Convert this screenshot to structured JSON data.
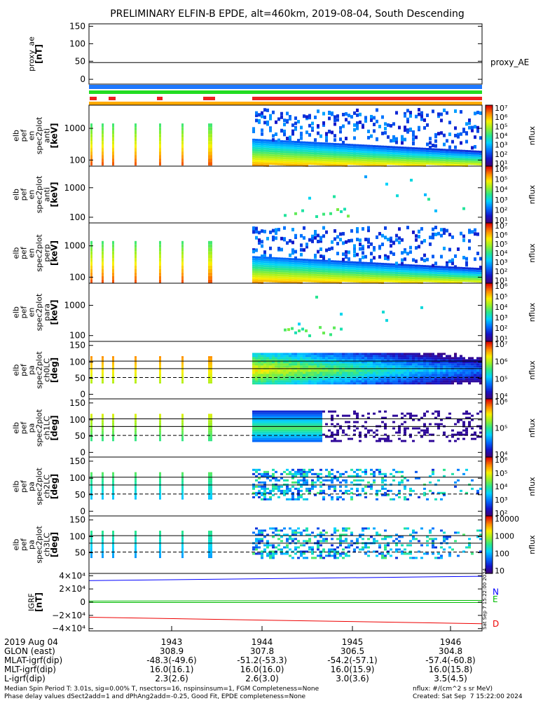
{
  "title": "PRELIMINARY ELFIN-B EPDE, alt=460km, 2019-08-04, South Descending",
  "colors": {
    "blue_bar": "#1e78ff",
    "green_bar": "#22dd22",
    "red_bar": "#ee2222",
    "orange_bar": "#ffaa00",
    "n_line": "#0000ff",
    "e_line": "#00bb00",
    "d_line": "#ee0000"
  },
  "chart_data": {
    "type": "heatmap",
    "x_ticks": [
      "1943",
      "1944",
      "1945",
      "1946"
    ],
    "panels": [
      {
        "ylabel": [
          "proxy_ae",
          "[nT]"
        ],
        "yticks": [
          "150",
          "100",
          "50",
          "0"
        ],
        "type": "line",
        "values": [
          49,
          49,
          49
        ],
        "legend": "proxy_AE"
      },
      {
        "ylabel": [
          "elb",
          "pef",
          "en",
          "spec2plot",
          "anti",
          "[keV]"
        ],
        "yticks": [
          "1000",
          "100"
        ],
        "type": "spectrogram",
        "cb_ticks": [
          "10⁷",
          "10⁶",
          "10⁵",
          "10⁴",
          "10³",
          "10²",
          "10¹"
        ],
        "cb_label": "nflux"
      },
      {
        "ylabel": [
          "elb",
          "pef",
          "en",
          "spec2plot",
          "anti",
          "[keV]"
        ],
        "yticks": [
          "1000",
          "100"
        ],
        "type": "spectrogram",
        "cb_ticks": [
          "10⁶",
          "10⁵",
          "10⁴",
          "10³",
          "10²",
          "10¹"
        ],
        "cb_label": "nflux"
      },
      {
        "ylabel": [
          "elb",
          "pef",
          "en",
          "spec2plot",
          "perp",
          "[keV]"
        ],
        "yticks": [
          "1000",
          "100"
        ],
        "type": "spectrogram",
        "cb_ticks": [
          "10⁷",
          "10⁶",
          "10⁵",
          "10⁴",
          "10³",
          "10²",
          "10¹"
        ],
        "cb_label": "nflux"
      },
      {
        "ylabel": [
          "elb",
          "pef",
          "en",
          "spec2plot",
          "para",
          "[keV]"
        ],
        "yticks": [
          "1000",
          "100"
        ],
        "type": "spectrogram",
        "cb_ticks": [
          "10⁶",
          "10⁵",
          "10⁴",
          "10³",
          "10²",
          "10¹"
        ],
        "cb_label": "nflux"
      },
      {
        "ylabel": [
          "elb",
          "pef",
          "pa",
          "spec2plot",
          "ch0LC",
          "[deg]"
        ],
        "yticks": [
          "150",
          "100",
          "50",
          "0"
        ],
        "type": "pitch",
        "cb_ticks": [
          "10⁷",
          "10⁶",
          "10⁵",
          "10⁴"
        ],
        "cb_label": "nflux"
      },
      {
        "ylabel": [
          "elb",
          "pef",
          "pa",
          "spec2plot",
          "ch1LC",
          "[deg]"
        ],
        "yticks": [
          "150",
          "100",
          "50",
          "0"
        ],
        "type": "pitch",
        "cb_ticks": [
          "10⁶",
          "10⁵",
          "10⁴"
        ],
        "cb_label": "nflux"
      },
      {
        "ylabel": [
          "elb",
          "pef",
          "pa",
          "spec2plot",
          "ch2LC",
          "[deg]"
        ],
        "yticks": [
          "150",
          "100",
          "50",
          "0"
        ],
        "type": "pitch",
        "cb_ticks": [
          "10⁶",
          "10⁵",
          "10⁴",
          "10³",
          "10²"
        ],
        "cb_label": "nflux"
      },
      {
        "ylabel": [
          "elb",
          "pef",
          "pa",
          "spec2plot",
          "ch3LC",
          "[deg]"
        ],
        "yticks": [
          "150",
          "100",
          "50"
        ],
        "type": "pitch",
        "cb_ticks": [
          "10000",
          "1000",
          "100",
          "10"
        ],
        "cb_label": "nflux"
      },
      {
        "ylabel": [
          "IGRF",
          "[nT]"
        ],
        "yticks": [
          "4×10⁴",
          "2×10⁴",
          "0",
          "−2×10⁴",
          "−4×10⁴"
        ],
        "type": "line",
        "ylim": [
          -40000,
          40000
        ],
        "series": [
          {
            "name": "N",
            "values": [
              30000,
              36000
            ]
          },
          {
            "name": "E",
            "values": [
              1500,
              2500
            ]
          },
          {
            "name": "D",
            "values": [
              -21000,
              -30000
            ]
          }
        ]
      }
    ],
    "ephemeris": {
      "date": "2019 Aug 04",
      "rows": [
        {
          "label": "GLON (east)",
          "values": [
            "308.9",
            "307.8",
            "306.5",
            "304.8"
          ]
        },
        {
          "label": "MLAT-igrf(dip)",
          "values": [
            "-48.3(-49.6)",
            "-51.2(-53.3)",
            "-54.2(-57.1)",
            "-57.4(-60.8)"
          ]
        },
        {
          "label": "MLT-igrf(dip)",
          "values": [
            "16.0(16.1)",
            "16.0(16.0)",
            "16.0(15.9)",
            "16.0(15.8)"
          ]
        },
        {
          "label": "L-igrf(dip)",
          "values": [
            "2.3(2.6)",
            "2.6(3.0)",
            "3.0(3.6)",
            "3.5(4.5)"
          ]
        }
      ]
    },
    "created_side": "Sat Sep  7 15:22:00 2024"
  },
  "footer": {
    "line1": "Median Spin Period T: 3.01s, sig=0.00% T, nsectors=16, nspinsinsum=1, FGM Completeness=None",
    "line2": "Phase delay values dSect2add=1 and dPhAng2add=-0.25, Good Fit, EPDE completeness=None",
    "nflux_units": "nflux: #/(cm^2 s sr MeV)",
    "created": "Created: Sat Sep  7 15:22:00 2024"
  }
}
